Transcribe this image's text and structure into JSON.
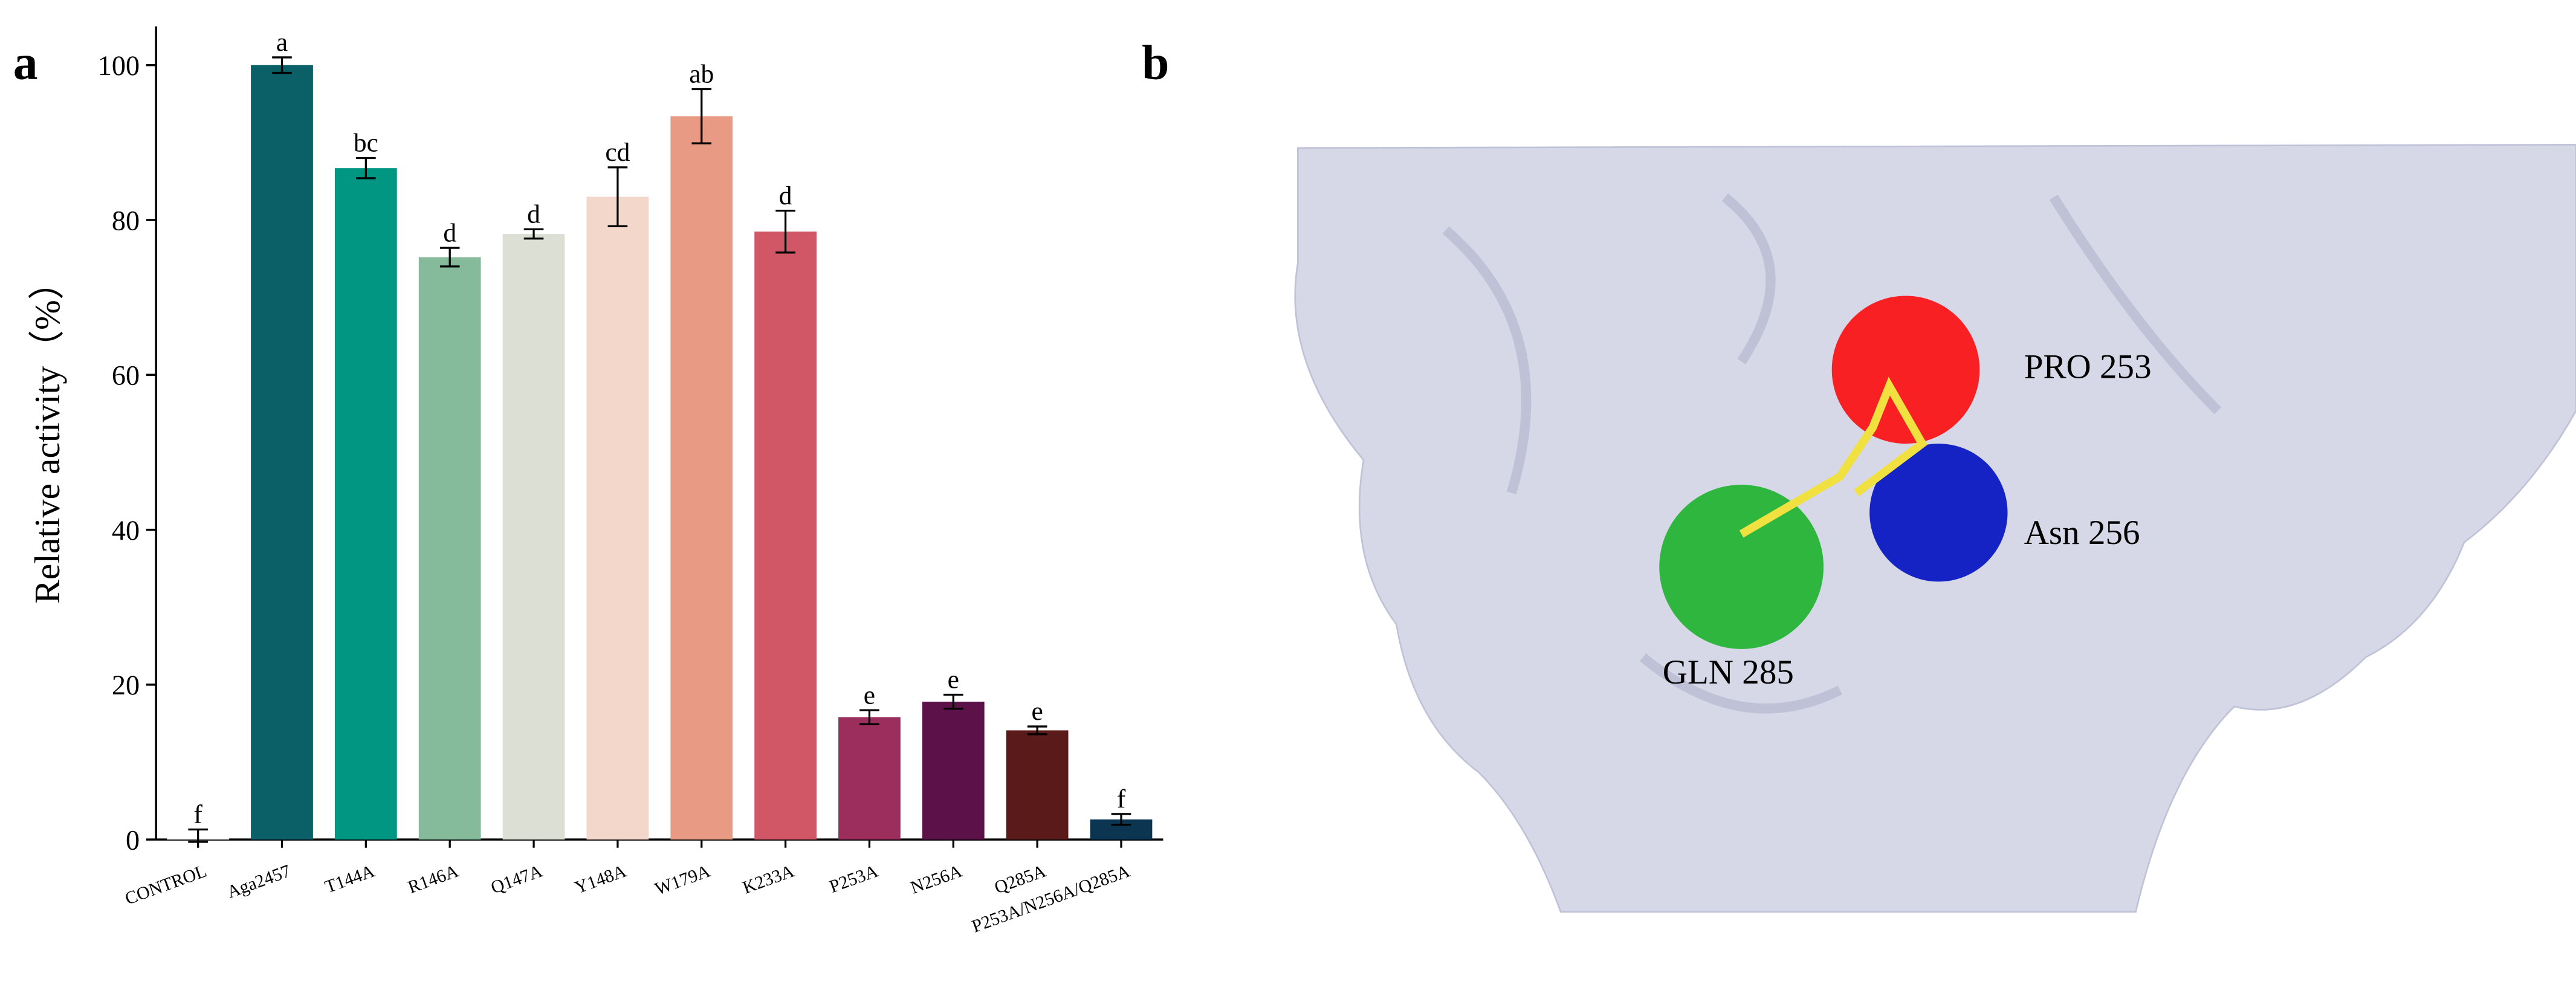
{
  "chart_data": {
    "type": "bar",
    "y_label": "Relative activity（%）",
    "categories": [
      "CONTROL",
      "Aga2457",
      "T144A",
      "R146A",
      "Q147A",
      "Y148A",
      "W179A",
      "K233A",
      "P253A",
      "N256A",
      "Q285A",
      "P253A/N256A/Q285A"
    ],
    "values": [
      0.5,
      100,
      86.7,
      75.2,
      78.2,
      83,
      93.4,
      78.5,
      15.8,
      17.8,
      14.1,
      2.6
    ],
    "errors": [
      0.8,
      1,
      1.3,
      1.2,
      0.6,
      3.8,
      3.5,
      2.7,
      0.9,
      0.9,
      0.5,
      0.7
    ],
    "letters": [
      "f",
      "a",
      "bc",
      "d",
      "d",
      "cd",
      "ab",
      "d",
      "e",
      "e",
      "e",
      "f"
    ],
    "colors": [
      "#ffffff",
      "#0b6068",
      "#009682",
      "#85bb9b",
      "#dcdfd3",
      "#f4d7cb",
      "#e89a85",
      "#d25766",
      "#9c2e5d",
      "#5c1249",
      "#5a1a19",
      "#0c3551"
    ],
    "ylim": [
      0,
      105
    ],
    "yticks": [
      0,
      20,
      40,
      60,
      80,
      100
    ]
  },
  "panel_labels": [
    "a",
    "b"
  ],
  "structure_labels": [
    "PRO 253",
    "Asn 256",
    "GLN 285"
  ]
}
